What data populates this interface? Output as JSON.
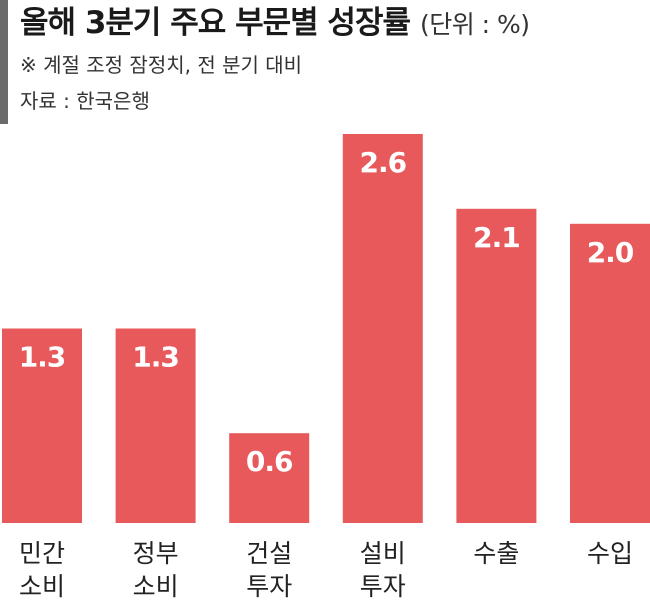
{
  "header": {
    "title": "올해 3분기 주요 부문별 성장률",
    "unit": "(단위 : %)",
    "note": "※ 계절 조정 잠정치, 전 분기 대비",
    "source": "자료 : 한국은행"
  },
  "colors": {
    "bar": "#e8595b",
    "accent_bar": "#6b6b6b"
  },
  "chart_data": {
    "type": "bar",
    "title": "올해 3분기 주요 부문별 성장률",
    "categories": [
      [
        "민간",
        "소비"
      ],
      [
        "정부",
        "소비"
      ],
      [
        "건설",
        "투자"
      ],
      [
        "설비",
        "투자"
      ],
      [
        "수출"
      ],
      [
        "수입"
      ]
    ],
    "values": [
      1.3,
      1.3,
      0.6,
      2.6,
      2.1,
      2.0
    ],
    "value_labels": [
      "1.3",
      "1.3",
      "0.6",
      "2.6",
      "2.1",
      "2.0"
    ],
    "ylim": [
      0,
      2.6
    ],
    "grid": false,
    "legend": "none"
  }
}
